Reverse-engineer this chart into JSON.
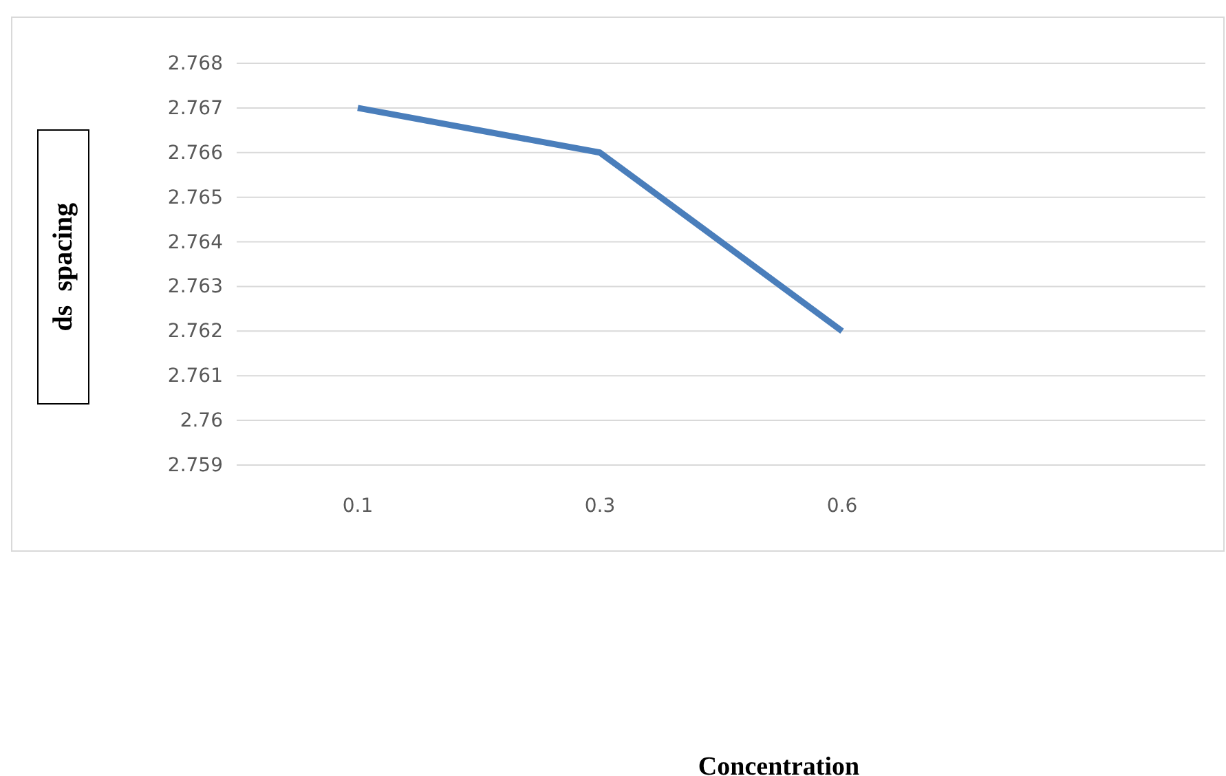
{
  "chart_data": {
    "type": "line",
    "annotations": [
      "Concentration"
    ],
    "ylabel": "ds  spacing",
    "categories": [
      "0.1",
      "0.3",
      "0.6",
      null
    ],
    "series": [
      {
        "color": "#4a7ebb",
        "values": [
          2.767,
          2.766,
          2.762,
          null
        ]
      }
    ],
    "ylim": [
      2.759,
      2.768
    ],
    "yticks": [
      2.759,
      2.76,
      2.761,
      2.762,
      2.763,
      2.764,
      2.765,
      2.766,
      2.767,
      2.768
    ],
    "grid": "y",
    "marker": "none",
    "line_style": "solid"
  }
}
